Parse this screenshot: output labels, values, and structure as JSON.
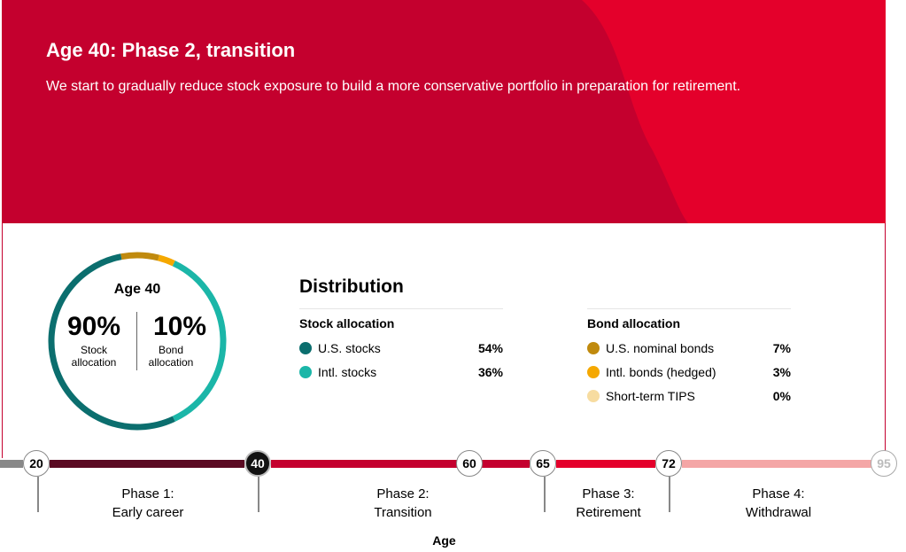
{
  "header": {
    "title": "Age 40: Phase 2, transition",
    "description": "We start to gradually reduce stock exposure to build a more conservative portfolio in preparation for retirement."
  },
  "colors": {
    "brand_red": "#c4002e",
    "brand_red_light": "#e4002b",
    "us_stocks": "#0b6e6e",
    "intl_stocks": "#1bb6a8",
    "us_nominal_bonds": "#c08a0e",
    "intl_bonds": "#f5a800",
    "short_term_tips": "#f7dca0"
  },
  "ring": {
    "age_label": "Age 40",
    "stock_pct": "90%",
    "stock_label_1": "Stock",
    "stock_label_2": "allocation",
    "bond_pct": "10%",
    "bond_label_1": "Bond",
    "bond_label_2": "allocation",
    "segments": [
      {
        "name": "U.S. stocks",
        "value": 54
      },
      {
        "name": "Intl. stocks",
        "value": 36
      },
      {
        "name": "U.S. nominal bonds",
        "value": 7
      },
      {
        "name": "Intl. bonds (hedged)",
        "value": 3
      },
      {
        "name": "Short-term TIPS",
        "value": 0
      }
    ]
  },
  "distribution": {
    "title": "Distribution",
    "stock": {
      "heading": "Stock allocation",
      "rows": [
        {
          "label": "U.S. stocks",
          "value": "54%"
        },
        {
          "label": "Intl. stocks",
          "value": "36%"
        }
      ]
    },
    "bond": {
      "heading": "Bond allocation",
      "rows": [
        {
          "label": "U.S. nominal bonds",
          "value": "7%"
        },
        {
          "label": "Intl. bonds (hedged)",
          "value": "3%"
        },
        {
          "label": "Short-term TIPS",
          "value": "0%"
        }
      ]
    }
  },
  "timeline": {
    "nodes": [
      "20",
      "40",
      "60",
      "65",
      "72",
      "95"
    ],
    "active_node": "40",
    "phases": [
      {
        "line1": "Phase 1:",
        "line2": "Early career"
      },
      {
        "line1": "Phase 2:",
        "line2": "Transition"
      },
      {
        "line1": "Phase 3:",
        "line2": "Retirement"
      },
      {
        "line1": "Phase 4:",
        "line2": "Withdrawal"
      }
    ],
    "axis_title": "Age"
  }
}
